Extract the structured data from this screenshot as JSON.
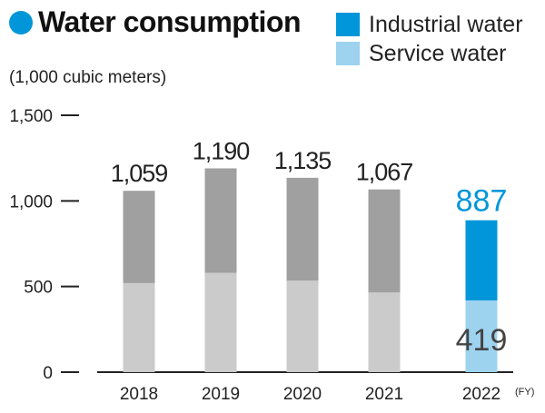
{
  "chart_data": {
    "type": "bar",
    "title": "Water consumption",
    "unit_label": "(1,000 cubic meters)",
    "x_unit": "(FY)",
    "categories": [
      "2018",
      "2019",
      "2020",
      "2021",
      "2022"
    ],
    "totals": [
      1059,
      1190,
      1135,
      1067,
      887
    ],
    "total_labels": [
      "1,059",
      "1,190",
      "1,135",
      "1,067",
      "887"
    ],
    "series": [
      {
        "name": "Service water",
        "values": [
          520,
          580,
          535,
          465,
          419
        ]
      },
      {
        "name": "Industrial water",
        "values": [
          539,
          610,
          600,
          602,
          468
        ]
      }
    ],
    "highlight_index": 4,
    "highlight_inner_label": "419",
    "ylim": [
      0,
      1500
    ],
    "yticks": [
      0,
      500,
      1000,
      1500
    ],
    "ytick_labels": [
      "0",
      "500",
      "1,000",
      "1,500"
    ],
    "colors": {
      "industrial": "#0096d9",
      "service": "#9dd3ef",
      "past_top": "#a0a0a0",
      "past_bottom": "#cbcbcb",
      "accent": "#0096d9"
    }
  },
  "legend": {
    "industrial_label": "Industrial water",
    "service_label": "Service water"
  }
}
